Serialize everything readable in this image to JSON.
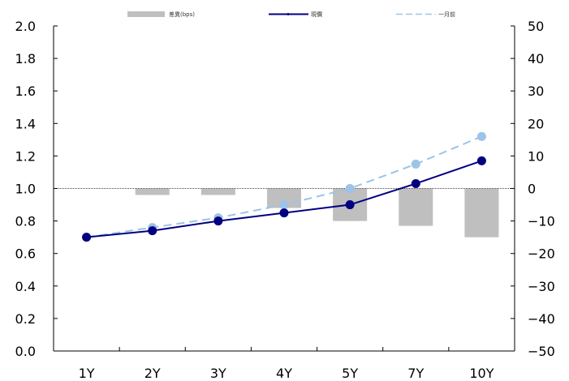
{
  "chart_data": {
    "type": "bar+line",
    "categories": [
      "1Y",
      "2Y",
      "3Y",
      "4Y",
      "5Y",
      "7Y",
      "10Y"
    ],
    "left_axis": {
      "ylim": [
        0.0,
        2.0
      ],
      "ticks": [
        "0.0",
        "0.2",
        "0.4",
        "0.6",
        "0.8",
        "1.0",
        "1.2",
        "1.4",
        "1.6",
        "1.8",
        "2.0"
      ]
    },
    "right_axis": {
      "ylim": [
        -50,
        50
      ],
      "ticks": [
        "-50",
        "-40",
        "-30",
        "-20",
        "-10",
        "0",
        "10",
        "20",
        "30",
        "40",
        "50"
      ]
    },
    "series": [
      {
        "name": "差異(bps)",
        "kind": "bar",
        "axis": "right",
        "color": "#bfbfbf",
        "values": [
          0,
          -2,
          -2,
          -6,
          -10,
          -11.5,
          -15
        ]
      },
      {
        "name": "現價",
        "kind": "line",
        "axis": "left",
        "color": "#000080",
        "values": [
          0.7,
          0.74,
          0.8,
          0.85,
          0.9,
          1.03,
          1.17
        ]
      },
      {
        "name": "一月前",
        "kind": "dashed-line",
        "axis": "left",
        "color": "#9dc3e6",
        "values": [
          0.7,
          0.76,
          0.82,
          0.9,
          1.0,
          1.15,
          1.32
        ]
      }
    ],
    "zero_line": "dotted",
    "grid": false,
    "legend_position": "top"
  }
}
